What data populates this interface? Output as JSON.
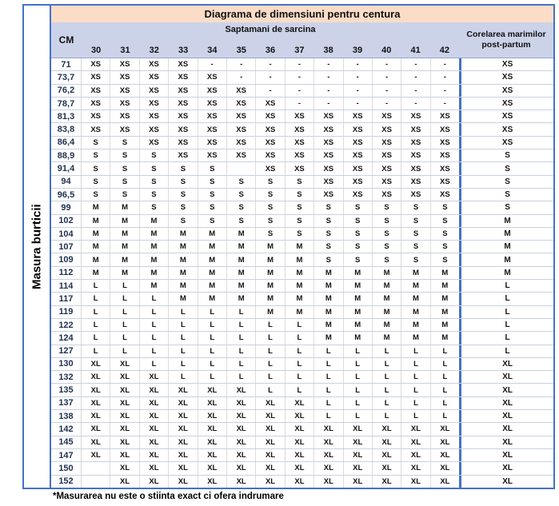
{
  "chart_data": {
    "type": "table",
    "title": "Diagrama de dimensiuni pentru centura",
    "row_group_label": "Masura burticii",
    "col_group_label": "Saptamani de sarcina",
    "cm_header": "CM",
    "week_columns": [
      "30",
      "31",
      "32",
      "33",
      "34",
      "35",
      "36",
      "37",
      "38",
      "39",
      "40",
      "41",
      "42"
    ],
    "postpartum_header": "Corelarea marimilor post-partum",
    "footnote": "*Masurarea nu este o stiinta exact ci ofera indrumare",
    "rows": [
      {
        "cm": "71",
        "sizes": [
          "XS",
          "XS",
          "XS",
          "XS",
          "-",
          "-",
          "-",
          "-",
          "-",
          "-",
          "-",
          "-",
          "-"
        ],
        "postpartum": "XS"
      },
      {
        "cm": "73,7",
        "sizes": [
          "XS",
          "XS",
          "XS",
          "XS",
          "XS",
          "-",
          "-",
          "-",
          "-",
          "-",
          "-",
          "-",
          "-"
        ],
        "postpartum": "XS"
      },
      {
        "cm": "76,2",
        "sizes": [
          "XS",
          "XS",
          "XS",
          "XS",
          "XS",
          "XS",
          "-",
          "-",
          "-",
          "-",
          "-",
          "-",
          "-"
        ],
        "postpartum": "XS"
      },
      {
        "cm": "78,7",
        "sizes": [
          "XS",
          "XS",
          "XS",
          "XS",
          "XS",
          "XS",
          "XS",
          "-",
          "-",
          "-",
          "-",
          "-",
          "-"
        ],
        "postpartum": "XS"
      },
      {
        "cm": "81,3",
        "sizes": [
          "XS",
          "XS",
          "XS",
          "XS",
          "XS",
          "XS",
          "XS",
          "XS",
          "XS",
          "XS",
          "XS",
          "XS",
          "XS"
        ],
        "postpartum": "XS"
      },
      {
        "cm": "83,8",
        "sizes": [
          "XS",
          "XS",
          "XS",
          "XS",
          "XS",
          "XS",
          "XS",
          "XS",
          "XS",
          "XS",
          "XS",
          "XS",
          "XS"
        ],
        "postpartum": "XS"
      },
      {
        "cm": "86,4",
        "sizes": [
          "S",
          "S",
          "XS",
          "XS",
          "XS",
          "XS",
          "XS",
          "XS",
          "XS",
          "XS",
          "XS",
          "XS",
          "XS"
        ],
        "postpartum": "XS"
      },
      {
        "cm": "88,9",
        "sizes": [
          "S",
          "S",
          "S",
          "XS",
          "XS",
          "XS",
          "XS",
          "XS",
          "XS",
          "XS",
          "XS",
          "XS",
          "XS"
        ],
        "postpartum": "S"
      },
      {
        "cm": "91,4",
        "sizes": [
          "S",
          "S",
          "S",
          "S",
          "S",
          "",
          "XS",
          "XS",
          "XS",
          "XS",
          "XS",
          "XS",
          "XS"
        ],
        "postpartum": "S"
      },
      {
        "cm": "94",
        "sizes": [
          "S",
          "S",
          "S",
          "S",
          "S",
          "S",
          "S",
          "S",
          "XS",
          "XS",
          "XS",
          "XS",
          "XS"
        ],
        "postpartum": "S"
      },
      {
        "cm": "96,5",
        "sizes": [
          "S",
          "S",
          "S",
          "S",
          "S",
          "S",
          "S",
          "S",
          "XS",
          "XS",
          "XS",
          "XS",
          "XS"
        ],
        "postpartum": "S"
      },
      {
        "cm": "99",
        "sizes": [
          "M",
          "M",
          "S",
          "S",
          "S",
          "S",
          "S",
          "S",
          "S",
          "S",
          "S",
          "S",
          "S"
        ],
        "postpartum": "S"
      },
      {
        "cm": "102",
        "sizes": [
          "M",
          "M",
          "M",
          "S",
          "S",
          "S",
          "S",
          "S",
          "S",
          "S",
          "S",
          "S",
          "S"
        ],
        "postpartum": "M"
      },
      {
        "cm": "104",
        "sizes": [
          "M",
          "M",
          "M",
          "M",
          "M",
          "M",
          "S",
          "S",
          "S",
          "S",
          "S",
          "S",
          "S"
        ],
        "postpartum": "M"
      },
      {
        "cm": "107",
        "sizes": [
          "M",
          "M",
          "M",
          "M",
          "M",
          "M",
          "M",
          "M",
          "S",
          "S",
          "S",
          "S",
          "S"
        ],
        "postpartum": "M"
      },
      {
        "cm": "109",
        "sizes": [
          "M",
          "M",
          "M",
          "M",
          "M",
          "M",
          "M",
          "M",
          "S",
          "S",
          "S",
          "S",
          "S"
        ],
        "postpartum": "M"
      },
      {
        "cm": "112",
        "sizes": [
          "M",
          "M",
          "M",
          "M",
          "M",
          "M",
          "M",
          "M",
          "M",
          "M",
          "M",
          "M",
          "M"
        ],
        "postpartum": "M"
      },
      {
        "cm": "114",
        "sizes": [
          "L",
          "L",
          "M",
          "M",
          "M",
          "M",
          "M",
          "M",
          "M",
          "M",
          "M",
          "M",
          "M"
        ],
        "postpartum": "L"
      },
      {
        "cm": "117",
        "sizes": [
          "L",
          "L",
          "L",
          "M",
          "M",
          "M",
          "M",
          "M",
          "M",
          "M",
          "M",
          "M",
          "M"
        ],
        "postpartum": "L"
      },
      {
        "cm": "119",
        "sizes": [
          "L",
          "L",
          "L",
          "L",
          "L",
          "L",
          "M",
          "M",
          "M",
          "M",
          "M",
          "M",
          "M"
        ],
        "postpartum": "L"
      },
      {
        "cm": "122",
        "sizes": [
          "L",
          "L",
          "L",
          "L",
          "L",
          "L",
          "L",
          "L",
          "M",
          "M",
          "M",
          "M",
          "M"
        ],
        "postpartum": "L"
      },
      {
        "cm": "124",
        "sizes": [
          "L",
          "L",
          "L",
          "L",
          "L",
          "L",
          "L",
          "L",
          "M",
          "M",
          "M",
          "M",
          "M"
        ],
        "postpartum": "L"
      },
      {
        "cm": "127",
        "sizes": [
          "L",
          "L",
          "L",
          "L",
          "L",
          "L",
          "L",
          "L",
          "L",
          "L",
          "L",
          "L",
          "L"
        ],
        "postpartum": "L"
      },
      {
        "cm": "130",
        "sizes": [
          "XL",
          "XL",
          "L",
          "L",
          "L",
          "L",
          "L",
          "L",
          "L",
          "L",
          "L",
          "L",
          "L"
        ],
        "postpartum": "XL"
      },
      {
        "cm": "132",
        "sizes": [
          "XL",
          "XL",
          "XL",
          "L",
          "L",
          "L",
          "L",
          "L",
          "L",
          "L",
          "L",
          "L",
          "L"
        ],
        "postpartum": "XL"
      },
      {
        "cm": "135",
        "sizes": [
          "XL",
          "XL",
          "XL",
          "XL",
          "XL",
          "XL",
          "L",
          "L",
          "L",
          "L",
          "L",
          "L",
          "L"
        ],
        "postpartum": "XL"
      },
      {
        "cm": "137",
        "sizes": [
          "XL",
          "XL",
          "XL",
          "XL",
          "XL",
          "XL",
          "XL",
          "XL",
          "L",
          "L",
          "L",
          "L",
          "L"
        ],
        "postpartum": "XL"
      },
      {
        "cm": "138",
        "sizes": [
          "XL",
          "XL",
          "XL",
          "XL",
          "XL",
          "XL",
          "XL",
          "XL",
          "L",
          "L",
          "L",
          "L",
          "L"
        ],
        "postpartum": "XL"
      },
      {
        "cm": "142",
        "sizes": [
          "XL",
          "XL",
          "XL",
          "XL",
          "XL",
          "XL",
          "XL",
          "XL",
          "XL",
          "XL",
          "XL",
          "XL",
          "XL"
        ],
        "postpartum": "XL"
      },
      {
        "cm": "145",
        "sizes": [
          "XL",
          "XL",
          "XL",
          "XL",
          "XL",
          "XL",
          "XL",
          "XL",
          "XL",
          "XL",
          "XL",
          "XL",
          "XL"
        ],
        "postpartum": "XL"
      },
      {
        "cm": "147",
        "sizes": [
          "XL",
          "XL",
          "XL",
          "XL",
          "XL",
          "XL",
          "XL",
          "XL",
          "XL",
          "XL",
          "XL",
          "XL",
          "XL"
        ],
        "postpartum": "XL"
      },
      {
        "cm": "150",
        "sizes": [
          "",
          "XL",
          "XL",
          "XL",
          "XL",
          "XL",
          "XL",
          "XL",
          "XL",
          "XL",
          "XL",
          "XL",
          "XL"
        ],
        "postpartum": "XL"
      },
      {
        "cm": "152",
        "sizes": [
          "",
          "XL",
          "XL",
          "XL",
          "XL",
          "XL",
          "XL",
          "XL",
          "XL",
          "XL",
          "XL",
          "XL",
          "XL"
        ],
        "postpartum": "XL"
      }
    ]
  },
  "colors": {
    "border_blue": "#4472C4",
    "title_bg": "#FBDCC7",
    "header_bg": "#CCD3E8",
    "row_line": "#C9D0E2",
    "cm_text": "#1F3050"
  }
}
